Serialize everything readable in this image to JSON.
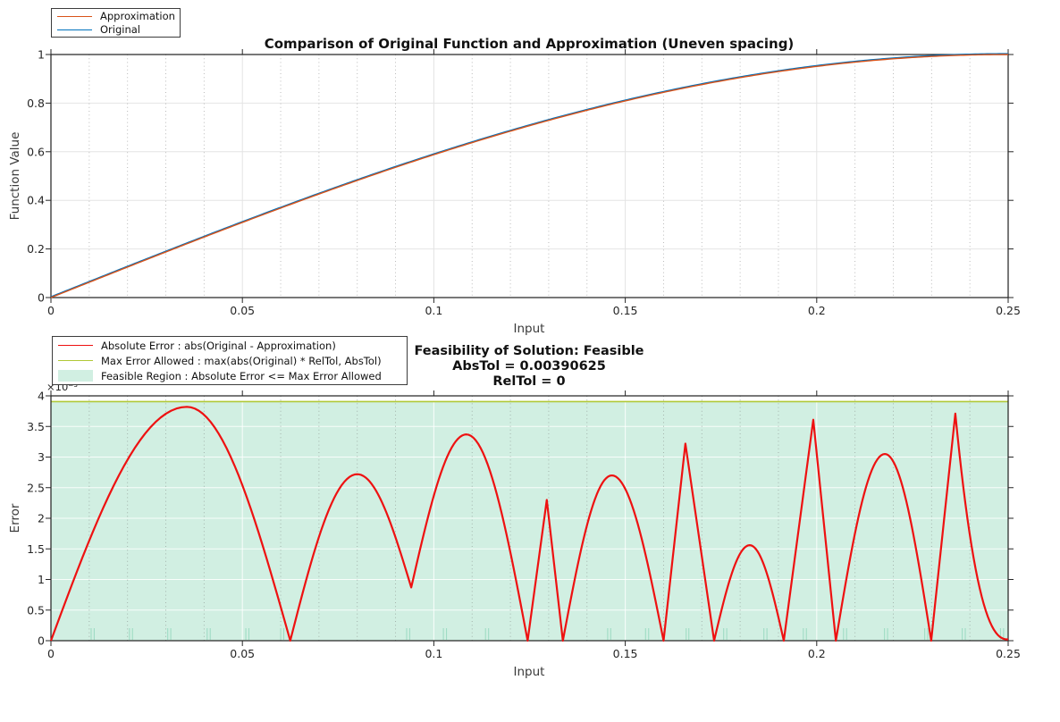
{
  "window": {
    "background": "#ffffff"
  },
  "top_chart": {
    "title": "Comparison of Original Function and Approximation (Uneven spacing)",
    "xlabel": "Input",
    "ylabel": "Function Value",
    "legend": [
      {
        "label": "Approximation",
        "color": "#D95319",
        "type": "line"
      },
      {
        "label": "Original",
        "color": "#0072BD",
        "type": "line"
      }
    ]
  },
  "bottom_chart": {
    "title_line1": "Feasibility of Solution: Feasible",
    "title_line2": "AbsTol = 0.00390625",
    "title_line3": "RelTol = 0",
    "xlabel": "Input",
    "ylabel": "Error",
    "exponent_label": "×10⁻³",
    "legend": [
      {
        "label": "Absolute Error : abs(Original - Approximation)",
        "color": "#EE1111",
        "type": "line"
      },
      {
        "label": "Max Error Allowed : max(abs(Original) * RelTol, AbsTol)",
        "color": "#B0C836",
        "type": "line"
      },
      {
        "label": "Feasible Region : Absolute Error <= Max Error Allowed",
        "color": "#D1EFE2",
        "type": "patch"
      }
    ]
  },
  "chart_data": [
    {
      "type": "line",
      "title": "Comparison of Original Function and Approximation (Uneven spacing)",
      "xlabel": "Input",
      "ylabel": "Function Value",
      "xlim": [
        0,
        0.25
      ],
      "ylim": [
        0,
        1
      ],
      "xticks": [
        0,
        0.05,
        0.1,
        0.15,
        0.2,
        0.25
      ],
      "xtick_labels": [
        "0",
        "0.05",
        "0.1",
        "0.15",
        "0.2",
        "0.25"
      ],
      "yticks": [
        0,
        0.2,
        0.4,
        0.6,
        0.8,
        1
      ],
      "ytick_labels": [
        "0",
        "0.2",
        "0.4",
        "0.6",
        "0.8",
        "1"
      ],
      "minor_x_grid_step": 0.01,
      "grid": "major solid + minor dotted vertical",
      "legend_position": "top-left outside",
      "series": [
        {
          "name": "Original",
          "color": "#0072BD",
          "function": "sin(2*pi*x)"
        },
        {
          "name": "Approximation",
          "color": "#D95319",
          "function": "sin(2*pi*x) within ±0.0039"
        }
      ],
      "sample_points": {
        "x": [
          0,
          0.01,
          0.02,
          0.03,
          0.04,
          0.05,
          0.06,
          0.07,
          0.08,
          0.09,
          0.1,
          0.11,
          0.12,
          0.13,
          0.14,
          0.15,
          0.16,
          0.17,
          0.18,
          0.19,
          0.2,
          0.21,
          0.22,
          0.23,
          0.24,
          0.25
        ],
        "original": [
          0,
          0.0628,
          0.1253,
          0.1874,
          0.2487,
          0.309,
          0.3681,
          0.4258,
          0.4818,
          0.5358,
          0.5878,
          0.6374,
          0.6845,
          0.729,
          0.7705,
          0.809,
          0.8443,
          0.8763,
          0.9048,
          0.9298,
          0.9511,
          0.9686,
          0.9823,
          0.9921,
          0.998,
          1.0
        ]
      }
    },
    {
      "type": "line+area",
      "xlabel": "Input",
      "ylabel": "Error",
      "y_unit_scale": "1e-3",
      "xlim": [
        0,
        0.25
      ],
      "ylim_milli": [
        0,
        4
      ],
      "xticks": [
        0,
        0.05,
        0.1,
        0.15,
        0.2,
        0.25
      ],
      "xtick_labels": [
        "0",
        "0.05",
        "0.1",
        "0.15",
        "0.2",
        "0.25"
      ],
      "yticks_milli": [
        0,
        0.5,
        1,
        1.5,
        2,
        2.5,
        3,
        3.5,
        4
      ],
      "ytick_labels": [
        "0",
        "0.5",
        "1",
        "1.5",
        "2",
        "2.5",
        "3",
        "3.5",
        "4"
      ],
      "minor_x_grid_step": 0.01,
      "feasibility": "Feasible",
      "abs_tol": 0.00390625,
      "rel_tol": 0,
      "max_error_allowed_milli": 3.90625,
      "colors": {
        "error": "#EE1111",
        "max_error": "#B0C836",
        "region": "#D1EFE2",
        "breakpoints": "#9FDCC4"
      },
      "error_curve_segments_milli": [
        {
          "x0": 0.0,
          "v0": 0.0,
          "xp": 0.0355,
          "vp": 3.82,
          "x1": 0.0625,
          "v1": 0.0,
          "shape": "round"
        },
        {
          "x0": 0.0625,
          "v0": 0.0,
          "xp": 0.08,
          "vp": 2.72,
          "x1": 0.0941,
          "v1": 0.87,
          "shape": "round"
        },
        {
          "x0": 0.0941,
          "v0": 0.87,
          "xp": 0.1085,
          "vp": 3.37,
          "x1": 0.1245,
          "v1": 0.0,
          "shape": "round"
        },
        {
          "x0": 0.1245,
          "v0": 0.0,
          "xp": 0.1295,
          "vp": 2.3,
          "x1": 0.1337,
          "v1": 0.0,
          "shape": "sharp"
        },
        {
          "x0": 0.1337,
          "v0": 0.0,
          "xp": 0.1465,
          "vp": 2.7,
          "x1": 0.16,
          "v1": 0.0,
          "shape": "round"
        },
        {
          "x0": 0.16,
          "v0": 0.0,
          "xp": 0.1657,
          "vp": 3.22,
          "x1": 0.1732,
          "v1": 0.0,
          "shape": "sharp"
        },
        {
          "x0": 0.1732,
          "v0": 0.0,
          "xp": 0.1825,
          "vp": 1.56,
          "x1": 0.1914,
          "v1": 0.0,
          "shape": "round"
        },
        {
          "x0": 0.1914,
          "v0": 0.0,
          "xp": 0.1991,
          "vp": 3.61,
          "x1": 0.205,
          "v1": 0.0,
          "shape": "sharp"
        },
        {
          "x0": 0.205,
          "v0": 0.0,
          "xp": 0.2178,
          "vp": 3.05,
          "x1": 0.2299,
          "v1": 0.0,
          "shape": "round"
        },
        {
          "x0": 0.2299,
          "v0": 0.0,
          "xp": 0.2362,
          "vp": 3.71,
          "x1": 0.25,
          "v1": 0.02,
          "shape": "decay"
        }
      ],
      "breakpoint_ticks": [
        0.0105,
        0.0113,
        0.0205,
        0.0213,
        0.0305,
        0.0313,
        0.0408,
        0.0416,
        0.0509,
        0.0517,
        0.06,
        0.0608,
        0.0929,
        0.0937,
        0.1025,
        0.1033,
        0.1135,
        0.1143,
        0.1454,
        0.1462,
        0.1553,
        0.1561,
        0.1659,
        0.1666,
        0.1757,
        0.1765,
        0.1862,
        0.187,
        0.1965,
        0.1973,
        0.207,
        0.2078,
        0.2177,
        0.2185,
        0.2282,
        0.229,
        0.238,
        0.2388,
        0.248,
        0.2488
      ]
    }
  ]
}
